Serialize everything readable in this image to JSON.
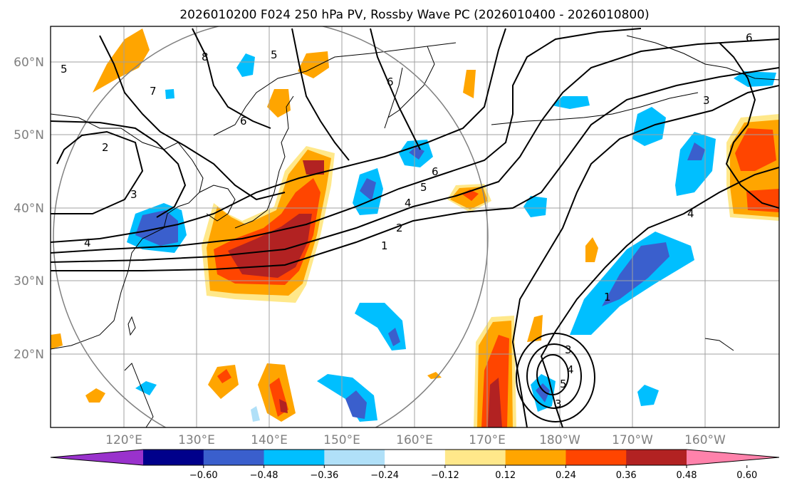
{
  "chart_data": {
    "type": "map",
    "title": "2026010200 F024 250 hPa PV, Rossby Wave PC (2026010400 - 2026010800)",
    "lat_ticks": [
      "20°N",
      "30°N",
      "40°N",
      "50°N",
      "60°N"
    ],
    "lon_ticks": [
      "120°E",
      "130°E",
      "140°E",
      "150°E",
      "160°E",
      "170°E",
      "180°W",
      "170°W",
      "160°W"
    ],
    "colorbar": {
      "levels": [
        "−0.60",
        "−0.48",
        "−0.36",
        "−0.24",
        "−0.12",
        "0.12",
        "0.24",
        "0.36",
        "0.48",
        "0.60"
      ],
      "colors": [
        "#9932cc",
        "#00008b",
        "#3a5fcd",
        "#00bfff",
        "#b0e0f8",
        "#ffffff",
        "#ffe88a",
        "#ffa500",
        "#ff4500",
        "#b22222",
        "#ff82ab"
      ],
      "extend": "both"
    },
    "contour_labels": [
      "2",
      "3",
      "4",
      "5",
      "6",
      "7",
      "8",
      "1",
      "2",
      "4",
      "5",
      "6",
      "5",
      "6",
      "3",
      "1",
      "4",
      "3",
      "3",
      "4",
      "5",
      "6"
    ],
    "grid": true
  }
}
